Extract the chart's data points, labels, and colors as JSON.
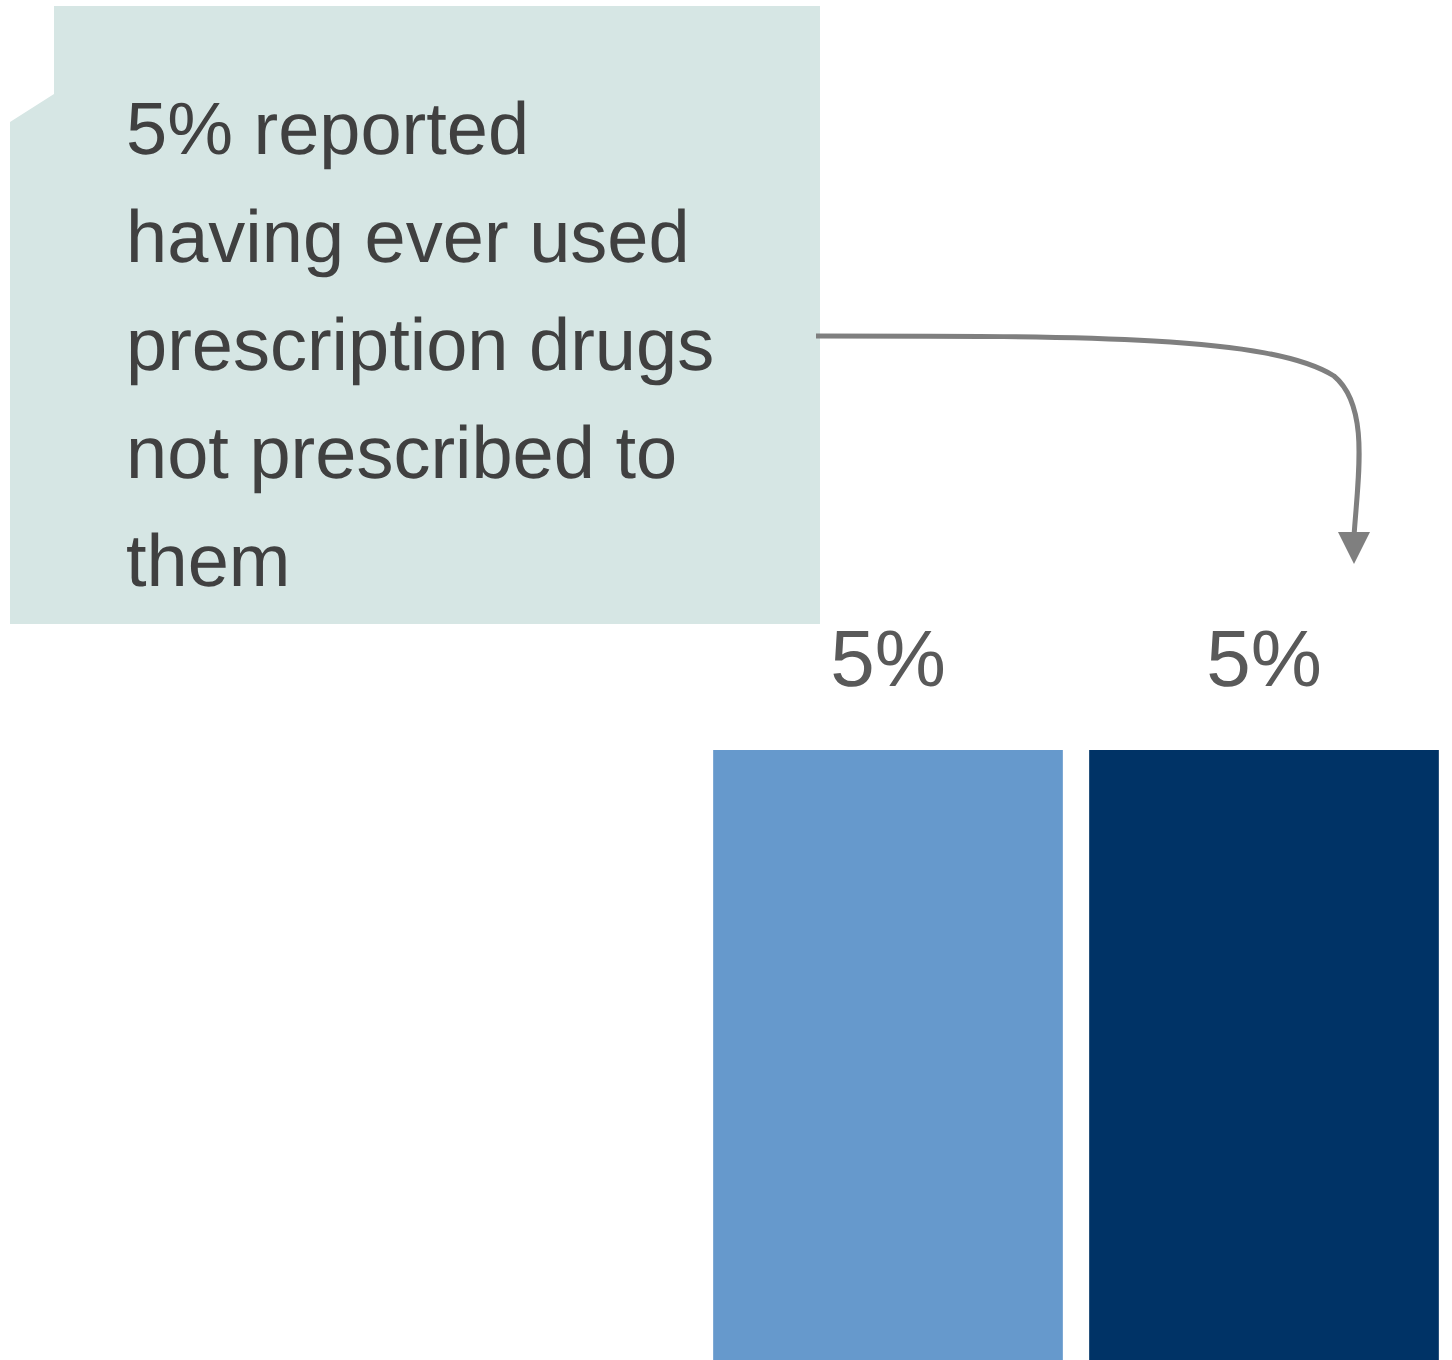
{
  "chart_data": {
    "type": "bar",
    "categories": [
      null,
      null
    ],
    "values": [
      5,
      5
    ],
    "colors": [
      "#6699cc",
      "#003366"
    ],
    "value_labels": [
      "5%",
      "5%"
    ],
    "annotations": [
      "5% reported having ever used prescription drugs not prescribed to them"
    ],
    "legend": false
  }
}
